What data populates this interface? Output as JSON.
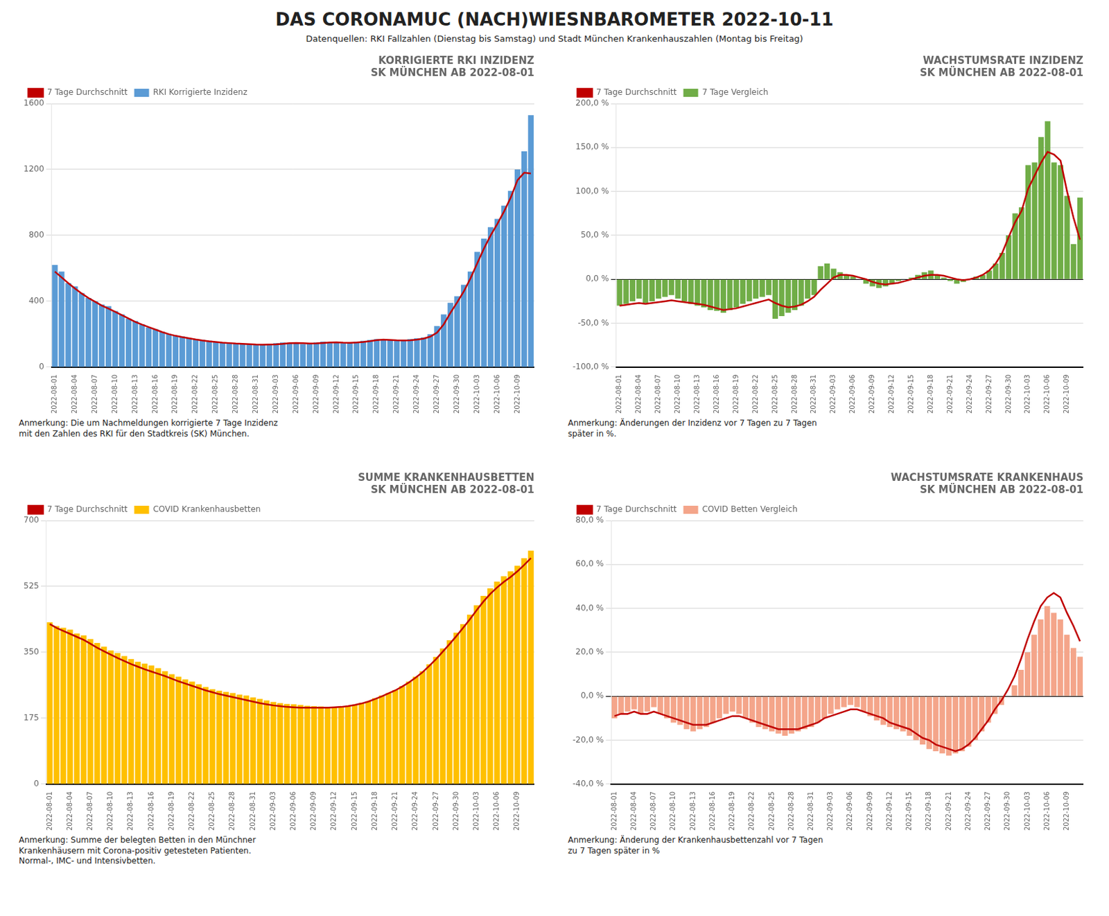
{
  "title": "DAS CORONAMUC (NACH)WIESNBAROMETER 2022-10-11",
  "subtitle": "Datenquellen: RKI Fallzahlen (Dienstag bis Samstag) und Stadt München Krankenhauszahlen (Montag bis Freitag)",
  "chart_data": [
    {
      "type": "bar",
      "title": "KORRIGIERTE RKI INZIDENZ",
      "subtitle": "SK MÜNCHEN AB 2022-08-01",
      "annotation": "Anmerkung: Die um Nachmeldungen korrigierte 7 Tage Inzidenz\nmit den Zahlen des RKI für den Stadtkreis (SK) München.",
      "categories": [
        "2022-08-01",
        null,
        null,
        "2022-08-04",
        null,
        null,
        "2022-08-07",
        null,
        null,
        "2022-08-10",
        null,
        null,
        "2022-08-13",
        null,
        null,
        "2022-08-16",
        null,
        null,
        "2022-08-19",
        null,
        null,
        "2022-08-22",
        null,
        null,
        "2022-08-25",
        null,
        null,
        "2022-08-28",
        null,
        null,
        "2022-08-31",
        null,
        null,
        "2022-09-03",
        null,
        null,
        "2022-09-06",
        null,
        null,
        "2022-09-09",
        null,
        null,
        "2022-09-12",
        null,
        null,
        "2022-09-15",
        null,
        null,
        "2022-09-18",
        null,
        null,
        "2022-09-21",
        null,
        null,
        "2022-09-24",
        null,
        null,
        "2022-09-27",
        null,
        null,
        "2022-09-30",
        null,
        null,
        "2022-10-03",
        null,
        null,
        "2022-10-06",
        null,
        null,
        "2022-10-09",
        null,
        null
      ],
      "series": [
        {
          "name": "RKI Korrigierte Inzidenz",
          "type": "bar",
          "color": "#5b9bd5",
          "values": [
            620,
            580,
            510,
            490,
            450,
            420,
            400,
            380,
            370,
            340,
            320,
            295,
            280,
            260,
            240,
            230,
            215,
            200,
            190,
            185,
            175,
            170,
            165,
            160,
            155,
            150,
            148,
            145,
            142,
            140,
            138,
            135,
            140,
            145,
            150,
            148,
            145,
            140,
            145,
            150,
            155,
            150,
            148,
            145,
            148,
            155,
            160,
            165,
            170,
            168,
            165,
            160,
            165,
            170,
            175,
            180,
            200,
            250,
            320,
            390,
            430,
            500,
            580,
            700,
            780,
            850,
            900,
            980,
            1070,
            1200,
            1310,
            1530
          ]
        },
        {
          "name": "7 Tage Durchschnitt",
          "type": "line",
          "color": "#c00000",
          "values": [
            580,
            545,
            510,
            477,
            447,
            420,
            397,
            374,
            355,
            336,
            315,
            295,
            275,
            258,
            243,
            228,
            213,
            200,
            190,
            182,
            175,
            168,
            162,
            157,
            153,
            149,
            146,
            143,
            141,
            139,
            137,
            136,
            137,
            138,
            141,
            145,
            147,
            145,
            143,
            144,
            147,
            150,
            151,
            149,
            148,
            150,
            153,
            158,
            164,
            167,
            165,
            163,
            162,
            163,
            167,
            173,
            185,
            210,
            260,
            330,
            393,
            460,
            540,
            630,
            720,
            800,
            870,
            945,
            1030,
            1135,
            1180,
            1175
          ]
        }
      ],
      "ylim": [
        0,
        1600
      ],
      "yticks": [
        0,
        400,
        800,
        1200,
        1600
      ],
      "grid": true,
      "legend": "top left"
    },
    {
      "type": "bar",
      "title": "WACHSTUMSRATE INZIDENZ",
      "subtitle": "SK MÜNCHEN AB 2022-08-01",
      "annotation": "Anmerkung: Änderungen der Inzidenz vor 7 Tagen zu 7 Tagen\nspäter in %.",
      "categories": [
        "2022-08-01",
        null,
        null,
        "2022-08-04",
        null,
        null,
        "2022-08-07",
        null,
        null,
        "2022-08-10",
        null,
        null,
        "2022-08-13",
        null,
        null,
        "2022-08-16",
        null,
        null,
        "2022-08-19",
        null,
        null,
        "2022-08-22",
        null,
        null,
        "2022-08-25",
        null,
        null,
        "2022-08-28",
        null,
        null,
        "2022-08-31",
        null,
        null,
        "2022-09-03",
        null,
        null,
        "2022-09-06",
        null,
        null,
        "2022-09-09",
        null,
        null,
        "2022-09-12",
        null,
        null,
        "2022-09-15",
        null,
        null,
        "2022-09-18",
        null,
        null,
        "2022-09-21",
        null,
        null,
        "2022-09-24",
        null,
        null,
        "2022-09-27",
        null,
        null,
        "2022-09-30",
        null,
        null,
        "2022-10-03",
        null,
        null,
        "2022-10-06",
        null,
        null,
        "2022-10-09",
        null,
        null
      ],
      "series": [
        {
          "name": "7 Tage Vergleich",
          "type": "bar",
          "color": "#70ad47",
          "values": [
            -30,
            -28,
            -25,
            -22,
            -27,
            -25,
            -22,
            -20,
            -18,
            -22,
            -25,
            -28,
            -30,
            -32,
            -35,
            -36,
            -38,
            -35,
            -32,
            -28,
            -25,
            -22,
            -20,
            -18,
            -45,
            -42,
            -38,
            -35,
            -30,
            -22,
            -18,
            15,
            18,
            12,
            8,
            5,
            3,
            0,
            -5,
            -8,
            -10,
            -8,
            -5,
            -2,
            0,
            2,
            5,
            8,
            10,
            5,
            2,
            -2,
            -5,
            -3,
            0,
            3,
            5,
            10,
            18,
            30,
            50,
            75,
            82,
            130,
            133,
            162,
            180,
            133,
            130,
            95,
            40,
            93
          ]
        },
        {
          "name": "7 Tage Durchschnitt",
          "type": "line",
          "color": "#c00000",
          "values": [
            -30,
            -29,
            -28,
            -27,
            -28,
            -27,
            -26,
            -25,
            -24,
            -25,
            -26,
            -27,
            -28,
            -29,
            -31,
            -33,
            -35,
            -34,
            -33,
            -31,
            -29,
            -27,
            -25,
            -23,
            -27,
            -30,
            -32,
            -31,
            -29,
            -25,
            -20,
            -12,
            -5,
            2,
            5,
            5,
            4,
            2,
            0,
            -3,
            -5,
            -6,
            -5,
            -4,
            -2,
            0,
            2,
            4,
            5,
            5,
            4,
            2,
            0,
            -1,
            0,
            2,
            5,
            10,
            18,
            30,
            48,
            65,
            78,
            103,
            118,
            133,
            145,
            142,
            135,
            100,
            70,
            45
          ]
        }
      ],
      "ylim": [
        -100,
        200
      ],
      "yticks": [
        {
          "value": -100,
          "label": "-100,0 %"
        },
        {
          "value": -50,
          "label": "-50,0 %"
        },
        {
          "value": 0,
          "label": "0,0 %"
        },
        {
          "value": 50,
          "label": "50,0 %"
        },
        {
          "value": 100,
          "label": "100,0 %"
        },
        {
          "value": 150,
          "label": "150,0 %"
        },
        {
          "value": 200,
          "label": "200,0 %"
        }
      ],
      "grid": true,
      "legend": "top left"
    },
    {
      "type": "bar",
      "title": "SUMME KRANKENHAUSBETTEN",
      "subtitle": "SK MÜNCHEN AB 2022-08-01",
      "annotation": "Anmerkung: Summe der belegten Betten in den Münchner\nKrankenhäusern mit Corona-positiv getesteten Patienten.\nNormal-, IMC- und Intensivbetten.",
      "categories": [
        "2022-08-01",
        null,
        null,
        "2022-08-04",
        null,
        null,
        "2022-08-07",
        null,
        null,
        "2022-08-10",
        null,
        null,
        "2022-08-13",
        null,
        null,
        "2022-08-16",
        null,
        null,
        "2022-08-19",
        null,
        null,
        "2022-08-22",
        null,
        null,
        "2022-08-25",
        null,
        null,
        "2022-08-28",
        null,
        null,
        "2022-08-31",
        null,
        null,
        "2022-09-03",
        null,
        null,
        "2022-09-06",
        null,
        null,
        "2022-09-09",
        null,
        null,
        "2022-09-12",
        null,
        null,
        "2022-09-15",
        null,
        null,
        "2022-09-18",
        null,
        null,
        "2022-09-21",
        null,
        null,
        "2022-09-24",
        null,
        null,
        "2022-09-27",
        null,
        null,
        "2022-09-30",
        null,
        null,
        "2022-10-03",
        null,
        null,
        "2022-10-06",
        null,
        null,
        "2022-10-09",
        null,
        null
      ],
      "series": [
        {
          "name": "COVID Krankenhausbetten",
          "type": "bar",
          "color": "#ffc000",
          "values": [
            430,
            420,
            415,
            410,
            400,
            395,
            385,
            375,
            365,
            355,
            348,
            340,
            332,
            325,
            320,
            315,
            308,
            300,
            292,
            285,
            278,
            272,
            265,
            258,
            252,
            248,
            245,
            242,
            238,
            235,
            230,
            226,
            222,
            218,
            215,
            213,
            212,
            210,
            208,
            207,
            206,
            205,
            204,
            205,
            207,
            210,
            215,
            220,
            228,
            235,
            242,
            250,
            260,
            272,
            285,
            300,
            318,
            338,
            360,
            382,
            402,
            425,
            450,
            475,
            500,
            520,
            538,
            552,
            565,
            580,
            600,
            620
          ]
        },
        {
          "name": "7 Tage Durchschnitt",
          "type": "line",
          "color": "#c00000",
          "values": [
            425,
            415,
            407,
            399,
            391,
            383,
            373,
            362,
            353,
            344,
            335,
            327,
            319,
            312,
            305,
            299,
            293,
            287,
            280,
            273,
            267,
            261,
            255,
            249,
            244,
            239,
            235,
            231,
            227,
            223,
            219,
            215,
            212,
            209,
            207,
            205,
            204,
            203,
            203,
            203,
            203,
            203,
            204,
            205,
            207,
            210,
            214,
            219,
            226,
            233,
            241,
            249,
            259,
            270,
            283,
            297,
            314,
            332,
            352,
            372,
            393,
            415,
            438,
            462,
            485,
            505,
            522,
            537,
            550,
            565,
            582,
            600
          ]
        }
      ],
      "ylim": [
        0,
        700
      ],
      "yticks": [
        0,
        175,
        350,
        525,
        700
      ],
      "grid": true,
      "legend": "top left"
    },
    {
      "type": "bar",
      "title": "WACHSTUMSRATE KRANKENHAUS",
      "subtitle": "SK MÜNCHEN AB 2022-08-01",
      "annotation": "Anmerkung: Änderung der Krankenhausbettenzahl vor 7 Tagen\nzu 7 Tagen später in %",
      "categories": [
        "2022-08-01",
        null,
        null,
        "2022-08-04",
        null,
        null,
        "2022-08-07",
        null,
        null,
        "2022-08-10",
        null,
        null,
        "2022-08-13",
        null,
        null,
        "2022-08-16",
        null,
        null,
        "2022-08-19",
        null,
        null,
        "2022-08-22",
        null,
        null,
        "2022-08-25",
        null,
        null,
        "2022-08-28",
        null,
        null,
        "2022-08-31",
        null,
        null,
        "2022-09-03",
        null,
        null,
        "2022-09-06",
        null,
        null,
        "2022-09-09",
        null,
        null,
        "2022-09-12",
        null,
        null,
        "2022-09-15",
        null,
        null,
        "2022-09-18",
        null,
        null,
        "2022-09-21",
        null,
        null,
        "2022-09-24",
        null,
        null,
        "2022-09-27",
        null,
        null,
        "2022-09-30",
        null,
        null,
        "2022-10-03",
        null,
        null,
        "2022-10-06",
        null,
        null,
        "2022-10-09",
        null,
        null
      ],
      "series": [
        {
          "name": "COVID Betten Vergleich",
          "type": "bar",
          "color": "#f4a58a",
          "values": [
            -10,
            -8,
            -7,
            -6,
            -8,
            -7,
            -5,
            -8,
            -10,
            -12,
            -13,
            -15,
            -16,
            -15,
            -14,
            -12,
            -10,
            -8,
            -7,
            -8,
            -10,
            -12,
            -14,
            -15,
            -16,
            -17,
            -18,
            -17,
            -16,
            -15,
            -14,
            -12,
            -10,
            -8,
            -6,
            -5,
            -4,
            -5,
            -7,
            -9,
            -11,
            -13,
            -14,
            -15,
            -16,
            -18,
            -20,
            -22,
            -24,
            -25,
            -26,
            -27,
            -26,
            -25,
            -23,
            -20,
            -16,
            -12,
            -8,
            -4,
            0,
            5,
            12,
            20,
            28,
            35,
            41,
            38,
            35,
            28,
            22,
            18
          ]
        },
        {
          "name": "7 Tage Durchschnitt",
          "type": "line",
          "color": "#c00000",
          "values": [
            -9,
            -8,
            -8,
            -7,
            -8,
            -8,
            -7,
            -8,
            -9,
            -10,
            -11,
            -12,
            -13,
            -13,
            -13,
            -12,
            -11,
            -10,
            -9,
            -9,
            -10,
            -11,
            -12,
            -13,
            -14,
            -15,
            -15,
            -15,
            -15,
            -14,
            -13,
            -12,
            -10,
            -9,
            -8,
            -7,
            -6,
            -6,
            -7,
            -8,
            -9,
            -10,
            -12,
            -13,
            -14,
            -15,
            -17,
            -19,
            -20,
            -22,
            -23,
            -24,
            -25,
            -24,
            -22,
            -19,
            -15,
            -11,
            -6,
            -2,
            3,
            9,
            17,
            26,
            34,
            41,
            45,
            47,
            45,
            38,
            32,
            25
          ]
        }
      ],
      "ylim": [
        -40,
        80
      ],
      "yticks": [
        {
          "value": -40,
          "label": "-40,0 %"
        },
        {
          "value": -20,
          "label": "-20,0 %"
        },
        {
          "value": 0,
          "label": "0,0 %"
        },
        {
          "value": 20,
          "label": "20,0 %"
        },
        {
          "value": 40,
          "label": "40,0 %"
        },
        {
          "value": 60,
          "label": "60,0 %"
        },
        {
          "value": 80,
          "label": "80,0 %"
        }
      ],
      "grid": true,
      "legend": "top left"
    }
  ]
}
